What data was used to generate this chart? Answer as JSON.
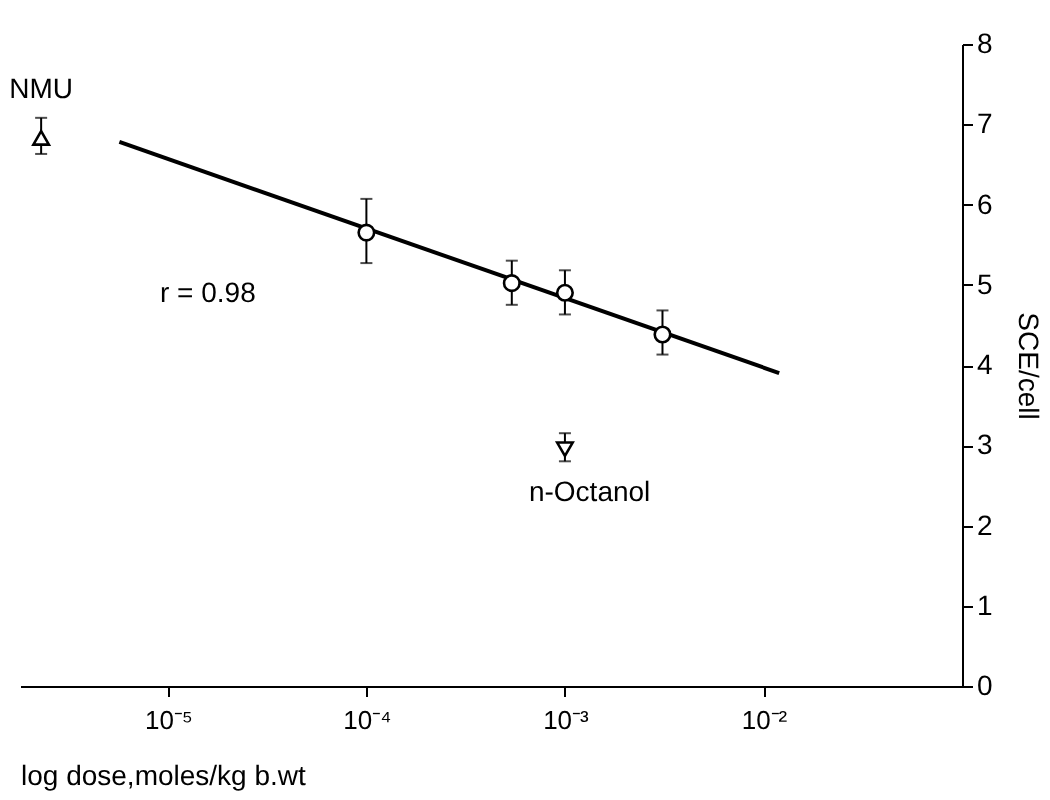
{
  "chart_data": {
    "type": "scatter",
    "xlabel": "log dose,moles/kg b.wt",
    "ylabel": "SCE/cell",
    "log": "x",
    "grid": false,
    "xlim": [
      1.8e-06,
      0.1
    ],
    "xticks": [
      {
        "value": 1e-05,
        "label": "10⁻⁵"
      },
      {
        "value": 0.0001,
        "label": "10⁻⁴"
      },
      {
        "value": 0.001,
        "label": "10⁻³"
      },
      {
        "value": 0.01,
        "label": "10⁻²"
      }
    ],
    "ylim": [
      0,
      8
    ],
    "yticks": [
      0,
      1,
      2,
      3,
      4,
      5,
      6,
      7,
      8
    ],
    "series": [
      {
        "marker": "circle",
        "color": "#000000",
        "x": [
          0.0001,
          0.00054,
          0.001,
          0.0031
        ],
        "values": [
          5.65,
          5.02,
          4.9,
          4.38
        ],
        "errors": [
          [
            5.27,
            6.07
          ],
          [
            4.75,
            5.3
          ],
          [
            4.63,
            5.18
          ],
          [
            4.13,
            4.68
          ]
        ]
      },
      {
        "type": "scatter",
        "name": "NMU",
        "marker": "triangle",
        "color": "#000000",
        "x": [
          2.3e-06
        ],
        "values": [
          6.83
        ],
        "errors": [
          [
            6.63,
            7.08
          ]
        ]
      },
      {
        "type": "scatter",
        "name": "n-Octanol",
        "marker": "triangle-down",
        "color": "#000000",
        "x": [
          0.001
        ],
        "values": [
          2.95
        ],
        "errors": [
          [
            2.8,
            3.15
          ]
        ]
      },
      {
        "type": "line",
        "line_style": "solid",
        "marker": "none",
        "color": "#000000",
        "x": [
          5.7e-06,
          0.012
        ],
        "values": [
          6.78,
          3.9
        ]
      }
    ],
    "annotations": [
      "r = 0.98"
    ]
  }
}
